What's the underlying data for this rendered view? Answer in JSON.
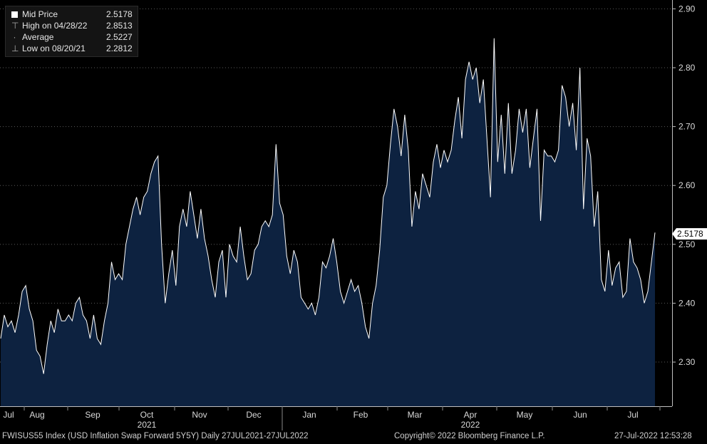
{
  "legend": {
    "rows": [
      {
        "label": "Mid Price",
        "value": "2.5178",
        "icon": "filled-square-icon"
      },
      {
        "label": "High on 04/28/22",
        "value": "2.8513",
        "icon": "high-marker-icon"
      },
      {
        "label": "Average",
        "value": "2.5227",
        "icon": "average-line-icon"
      },
      {
        "label": "Low on 08/20/21",
        "value": "2.2812",
        "icon": "low-marker-icon"
      }
    ]
  },
  "last_price_label": "2.5178",
  "footer": {
    "left": "FWISUS55 Index (USD Inflation Swap Forward 5Y5Y)  Daily 27JUL2021-27JUL2022",
    "center": "Copyright© 2022 Bloomberg Finance L.P.",
    "right": "27-Jul-2022 12:53:28"
  },
  "colors": {
    "background": "#000000",
    "area_fill": "#0d2240",
    "line": "#ffffff",
    "text": "#d9d9d9"
  },
  "chart_data": {
    "type": "area",
    "title": "",
    "xlabel": "",
    "ylabel": "",
    "ylim": [
      2.225,
      2.915
    ],
    "yticks": [
      2.3,
      2.4,
      2.5,
      2.6,
      2.7,
      2.8,
      2.9
    ],
    "x_month_labels": [
      "Jul",
      "Aug",
      "Sep",
      "Oct",
      "Nov",
      "Dec",
      "Jan",
      "Feb",
      "Mar",
      "Apr",
      "May",
      "Jun",
      "Jul"
    ],
    "x_year_labels": [
      "2021",
      "2022"
    ],
    "series": [
      {
        "values": [
          2.34,
          2.38,
          2.36,
          2.37,
          2.35,
          2.38,
          2.42,
          2.43,
          2.39,
          2.37,
          2.32,
          2.31,
          2.28,
          2.33,
          2.37,
          2.35,
          2.39,
          2.37,
          2.37,
          2.38,
          2.37,
          2.4,
          2.41,
          2.38,
          2.37,
          2.34,
          2.38,
          2.34,
          2.33,
          2.37,
          2.4,
          2.47,
          2.44,
          2.45,
          2.44,
          2.5,
          2.53,
          2.56,
          2.58,
          2.55,
          2.58,
          2.59,
          2.62,
          2.64,
          2.65,
          2.5,
          2.4,
          2.45,
          2.49,
          2.43,
          2.53,
          2.56,
          2.53,
          2.59,
          2.55,
          2.51,
          2.56,
          2.51,
          2.48,
          2.44,
          2.41,
          2.47,
          2.49,
          2.41,
          2.5,
          2.48,
          2.47,
          2.53,
          2.48,
          2.44,
          2.45,
          2.49,
          2.5,
          2.53,
          2.54,
          2.53,
          2.55,
          2.67,
          2.57,
          2.55,
          2.48,
          2.45,
          2.49,
          2.47,
          2.41,
          2.4,
          2.39,
          2.4,
          2.38,
          2.41,
          2.47,
          2.46,
          2.48,
          2.51,
          2.47,
          2.42,
          2.4,
          2.42,
          2.44,
          2.42,
          2.43,
          2.4,
          2.36,
          2.34,
          2.4,
          2.43,
          2.49,
          2.58,
          2.6,
          2.67,
          2.73,
          2.7,
          2.65,
          2.72,
          2.66,
          2.53,
          2.59,
          2.56,
          2.62,
          2.6,
          2.58,
          2.64,
          2.67,
          2.63,
          2.66,
          2.64,
          2.66,
          2.71,
          2.75,
          2.68,
          2.78,
          2.81,
          2.78,
          2.8,
          2.74,
          2.78,
          2.68,
          2.58,
          2.85,
          2.64,
          2.72,
          2.62,
          2.74,
          2.62,
          2.66,
          2.73,
          2.69,
          2.73,
          2.63,
          2.68,
          2.73,
          2.54,
          2.66,
          2.65,
          2.65,
          2.64,
          2.66,
          2.77,
          2.75,
          2.7,
          2.74,
          2.66,
          2.8,
          2.56,
          2.68,
          2.65,
          2.53,
          2.59,
          2.44,
          2.42,
          2.49,
          2.43,
          2.46,
          2.47,
          2.41,
          2.42,
          2.51,
          2.47,
          2.46,
          2.44,
          2.4,
          2.42,
          2.47,
          2.52
        ]
      }
    ],
    "grid": true,
    "legend_position": "top-left"
  }
}
